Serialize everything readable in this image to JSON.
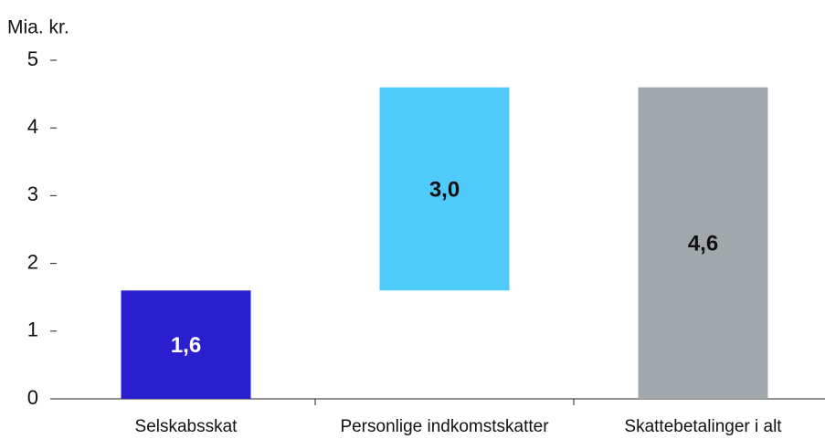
{
  "chart_data": {
    "type": "waterfall",
    "y_axis_label": "Mia. kr.",
    "categories": [
      "Selskabsskat",
      "Personlige indkomstskatter",
      "Skattebetalinger i alt"
    ],
    "values": [
      1.6,
      3.0,
      4.6
    ],
    "value_labels": [
      "1,6",
      "3,0",
      "4,6"
    ],
    "measure": [
      "relative",
      "relative",
      "total"
    ],
    "colors": [
      "#2a1fcf",
      "#4fcaf9",
      "#a0a8ab"
    ],
    "ylim": [
      0,
      5
    ],
    "yticks": [
      0,
      1,
      2,
      3,
      4,
      5
    ]
  }
}
